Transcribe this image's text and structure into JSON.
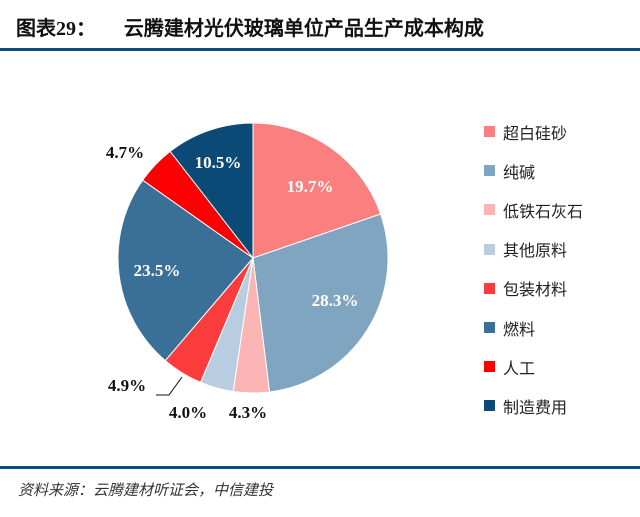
{
  "header": {
    "figure_no": "图表29：",
    "title": "云腾建材光伏玻璃单位产品生产成本构成"
  },
  "footer": {
    "source": "资料来源：云腾建材听证会，中信建投"
  },
  "chart_data": {
    "type": "pie",
    "title": "云腾建材光伏玻璃单位产品生产成本构成",
    "categories": [
      "超白硅砂",
      "纯碱",
      "低铁石灰石",
      "其他原料",
      "包装材料",
      "燃料",
      "人工",
      "制造费用"
    ],
    "values": [
      19.7,
      28.3,
      4.3,
      4.0,
      4.9,
      23.5,
      4.7,
      10.5
    ],
    "labels": [
      "19.7%",
      "28.3%",
      "4.3%",
      "4.0%",
      "4.9%",
      "23.5%",
      "4.7%",
      "10.5%"
    ],
    "colors": [
      "#fb7f7f",
      "#7fa5c0",
      "#fbb5b5",
      "#b9cde0",
      "#fb3c3c",
      "#3a6f97",
      "#fb0000",
      "#0b4a77"
    ],
    "start_angle": "12 o'clock, clockwise",
    "legend_position": "right"
  }
}
